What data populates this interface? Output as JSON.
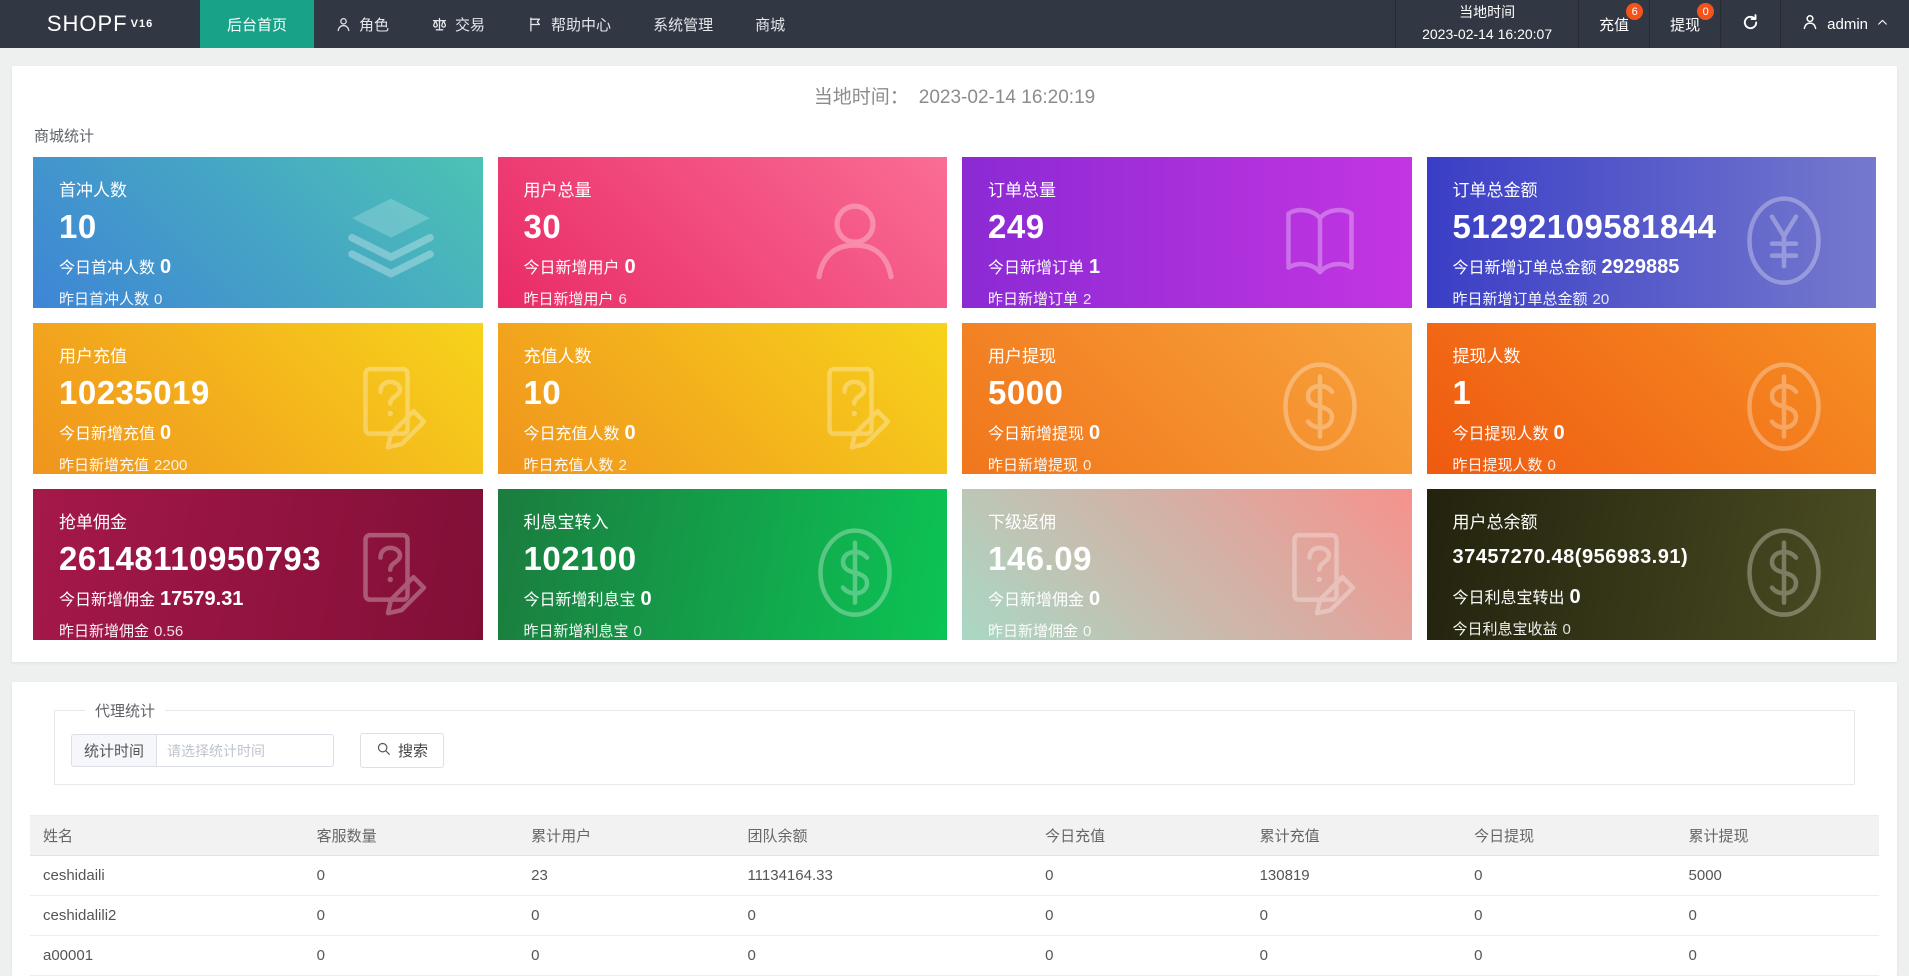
{
  "colors": {
    "navbar_bg": "#313743",
    "active_tab": "#18a389",
    "badge": "#f4541c",
    "page_bg": "#eef0f0",
    "table_header_bg": "#f2f2f2"
  },
  "navbar": {
    "logo": "SHOPF",
    "logo_version": "V16",
    "menu": [
      {
        "label": "后台首页",
        "icon": null,
        "active": true
      },
      {
        "label": "角色",
        "icon": "user-icon",
        "active": false
      },
      {
        "label": "交易",
        "icon": "scales-icon",
        "active": false
      },
      {
        "label": "帮助中心",
        "icon": "flag-icon",
        "active": false
      },
      {
        "label": "系统管理",
        "icon": null,
        "active": false
      },
      {
        "label": "商城",
        "icon": null,
        "active": false
      }
    ],
    "local_time_label": "当地时间",
    "local_time_value": "2023-02-14 16:20:07",
    "recharge": {
      "label": "充值",
      "badge": "6"
    },
    "withdraw": {
      "label": "提现",
      "badge": "0"
    },
    "username": "admin"
  },
  "main": {
    "time_label": "当地时间：",
    "time_value": "2023-02-14 16:20:19",
    "section_title": "商城统计",
    "cards": [
      {
        "title": "首冲人数",
        "value": "10",
        "today_label": "今日首冲人数",
        "today_value": "0",
        "yesterday_label": "昨日首冲人数",
        "yesterday_value": "0",
        "icon": "layers-icon",
        "gradient": {
          "angle": "45deg",
          "from": "#3e85d6",
          "to": "#4cc3b4"
        }
      },
      {
        "title": "用户总量",
        "value": "30",
        "today_label": "今日新增用户",
        "today_value": "0",
        "yesterday_label": "昨日新增用户",
        "yesterday_value": "6",
        "icon": "user-icon",
        "gradient": {
          "angle": "45deg",
          "from": "#e92b66",
          "to": "#fa6d94"
        }
      },
      {
        "title": "订单总量",
        "value": "249",
        "today_label": "今日新增订单",
        "today_value": "1",
        "yesterday_label": "昨日新增订单",
        "yesterday_value": "2",
        "icon": "book-open-icon",
        "gradient": {
          "angle": "90deg",
          "from": "#8b2ad4",
          "to": "#c435e2"
        }
      },
      {
        "title": "订单总金额",
        "value": "51292109581844",
        "today_label": "今日新增订单总金额",
        "today_value": "2929885",
        "yesterday_label": "昨日新增订单总金额",
        "yesterday_value": "20",
        "icon": "yen-circle-icon",
        "gradient": {
          "angle": "90deg",
          "from": "#3a3ec6",
          "to": "#7579cd"
        }
      },
      {
        "title": "用户充值",
        "value": "10235019",
        "today_label": "今日新增充值",
        "today_value": "0",
        "yesterday_label": "昨日新增充值",
        "yesterday_value": "2200",
        "icon": "doc-question-pencil-icon",
        "gradient": {
          "angle": "45deg",
          "from": "#f0941d",
          "to": "#f7d31c"
        }
      },
      {
        "title": "充值人数",
        "value": "10",
        "today_label": "今日充值人数",
        "today_value": "0",
        "yesterday_label": "昨日充值人数",
        "yesterday_value": "2",
        "icon": "doc-question-pencil-icon",
        "gradient": {
          "angle": "45deg",
          "from": "#f0941d",
          "to": "#f7d31c"
        }
      },
      {
        "title": "用户提现",
        "value": "5000",
        "today_label": "今日新增提现",
        "today_value": "0",
        "yesterday_label": "昨日新增提现",
        "yesterday_value": "0",
        "icon": "dollar-circle-icon",
        "gradient": {
          "angle": "45deg",
          "from": "#f1761c",
          "to": "#f7a43c"
        }
      },
      {
        "title": "提现人数",
        "value": "1",
        "today_label": "今日提现人数",
        "today_value": "0",
        "yesterday_label": "昨日提现人数",
        "yesterday_value": "0",
        "icon": "dollar-circle-icon",
        "gradient": {
          "angle": "45deg",
          "from": "#ef5a10",
          "to": "#f68f24"
        }
      },
      {
        "title": "抢单佣金",
        "value": "26148110950793",
        "today_label": "今日新增佣金",
        "today_value": "17579.31",
        "yesterday_label": "昨日新增佣金",
        "yesterday_value": "0.56",
        "icon": "doc-question-pencil-icon",
        "gradient": {
          "angle": "100deg",
          "from": "#a5184a",
          "to": "#800f36"
        }
      },
      {
        "title": "利息宝转入",
        "value": "102100",
        "today_label": "今日新增利息宝",
        "today_value": "0",
        "yesterday_label": "昨日新增利息宝",
        "yesterday_value": "0",
        "icon": "dollar-circle-icon",
        "gradient": {
          "angle": "100deg",
          "from": "#1b7c3f",
          "to": "#0cc455"
        }
      },
      {
        "title": "下级返佣",
        "value": "146.09",
        "today_label": "今日新增佣金",
        "today_value": "0",
        "yesterday_label": "昨日新增佣金",
        "yesterday_value": "0",
        "icon": "doc-question-pencil-icon",
        "gradient": {
          "angle": "45deg",
          "from": "#a9d8c4",
          "to": "#f6928d"
        }
      },
      {
        "title": "用户总余额",
        "value": "37457270.48(956983.91)",
        "today_label": "今日利息宝转出",
        "today_value": "0",
        "yesterday_label": "今日利息宝收益",
        "yesterday_value": "0",
        "icon": "dollar-circle-icon",
        "gradient": {
          "angle": "100deg",
          "from": "#23220e",
          "to": "#4c4e23"
        }
      }
    ]
  },
  "agent": {
    "section_title": "代理统计",
    "filter_label": "统计时间",
    "filter_placeholder": "请选择统计时间",
    "search_label": "搜索",
    "table": {
      "headers": [
        "姓名",
        "客服数量",
        "累计用户",
        "团队余额",
        "今日充值",
        "累计充值",
        "今日提现",
        "累计提现"
      ],
      "rows": [
        [
          "ceshidaili",
          "0",
          "23",
          "11134164.33",
          "0",
          "130819",
          "0",
          "5000"
        ],
        [
          "ceshidalili2",
          "0",
          "0",
          "0",
          "0",
          "0",
          "0",
          "0"
        ],
        [
          "a00001",
          "0",
          "0",
          "0",
          "0",
          "0",
          "0",
          "0"
        ]
      ]
    }
  }
}
